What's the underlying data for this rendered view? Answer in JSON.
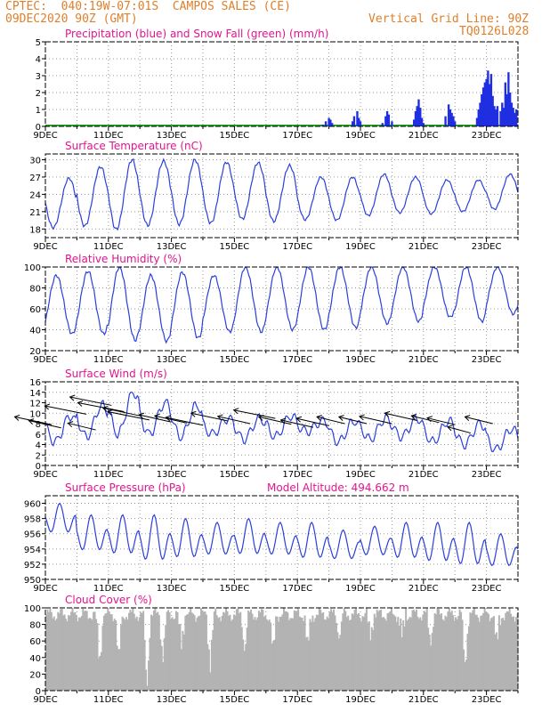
{
  "header": {
    "line1": "CPTEC:  040:19W-07:01S  CAMPOS SALES (CE)",
    "line2": "09DEC2020 90Z (GMT)",
    "grid_note": "Vertical Grid Line: 90Z",
    "code": "TQ0126L028"
  },
  "colors": {
    "header": "#e07f2a",
    "title": "#e0158f",
    "line": "#2b3fdb",
    "precip": "#1f2ee0",
    "snow": "#22aa22",
    "cloud": "#b3b3b3",
    "arrow": "#000000"
  },
  "x_ticks": [
    "9DEC",
    "11DEC",
    "13DEC",
    "15DEC",
    "17DEC",
    "19DEC",
    "21DEC",
    "23DEC"
  ],
  "chart_data": [
    {
      "type": "bar",
      "title": "Precipitation (blue) and Snow Fall (green) (mm/h)",
      "x": "days from 9DEC 00Z (0-15, hourly)",
      "ylim": [
        0,
        5
      ],
      "yticks": [
        0,
        1,
        2,
        3,
        4,
        5
      ],
      "series": [
        {
          "name": "Precipitation (blue)",
          "points": [
            [
              8.8,
              0.1
            ],
            [
              8.9,
              0.3
            ],
            [
              9.0,
              0.5
            ],
            [
              9.05,
              0.4
            ],
            [
              9.1,
              0.2
            ],
            [
              9.75,
              0.3
            ],
            [
              9.8,
              0.6
            ],
            [
              9.9,
              0.9
            ],
            [
              9.95,
              0.5
            ],
            [
              10.0,
              0.3
            ],
            [
              10.7,
              0.2
            ],
            [
              10.8,
              0.6
            ],
            [
              10.85,
              0.9
            ],
            [
              10.9,
              0.7
            ],
            [
              11.0,
              0.3
            ],
            [
              11.7,
              0.4
            ],
            [
              11.75,
              0.9
            ],
            [
              11.8,
              1.2
            ],
            [
              11.85,
              1.6
            ],
            [
              11.9,
              1.1
            ],
            [
              11.95,
              0.5
            ],
            [
              12.0,
              0.2
            ],
            [
              12.7,
              0.6
            ],
            [
              12.8,
              1.3
            ],
            [
              12.85,
              1.0
            ],
            [
              12.9,
              0.8
            ],
            [
              12.95,
              0.6
            ],
            [
              13.0,
              0.3
            ],
            [
              13.7,
              0.5
            ],
            [
              13.75,
              1.0
            ],
            [
              13.8,
              1.4
            ],
            [
              13.85,
              1.9
            ],
            [
              13.9,
              2.3
            ],
            [
              13.95,
              2.6
            ],
            [
              14.0,
              2.8
            ],
            [
              14.05,
              3.3
            ],
            [
              14.1,
              2.5
            ],
            [
              14.15,
              3.1
            ],
            [
              14.2,
              1.8
            ],
            [
              14.25,
              1.2
            ],
            [
              14.3,
              1.0
            ],
            [
              14.35,
              1.2
            ],
            [
              14.45,
              0.9
            ],
            [
              14.5,
              1.4
            ],
            [
              14.55,
              1.1
            ],
            [
              14.6,
              2.6
            ],
            [
              14.65,
              1.9
            ],
            [
              14.7,
              3.2
            ],
            [
              14.75,
              2.0
            ],
            [
              14.8,
              1.4
            ],
            [
              14.85,
              1.1
            ],
            [
              14.9,
              0.8
            ],
            [
              14.95,
              1.0
            ]
          ]
        },
        {
          "name": "Snow Fall (green)",
          "points": []
        }
      ]
    },
    {
      "type": "line",
      "title": "Surface Temperature (nC)",
      "ylim": [
        16.5,
        31
      ],
      "yticks": [
        18,
        21,
        24,
        27,
        30
      ],
      "daily_min": [
        18.2,
        18.5,
        17.9,
        18.6,
        18.8,
        19.0,
        19.7,
        19.3,
        19.6,
        19.5,
        20.3,
        20.8,
        20.6,
        21.0,
        21.4
      ],
      "daily_max": [
        26.8,
        28.8,
        30.0,
        29.8,
        30.0,
        29.6,
        29.5,
        29.0,
        27.0,
        27.0,
        27.5,
        27.0,
        26.5,
        26.5,
        27.5
      ]
    },
    {
      "type": "line",
      "title": "Relative Humidity (%)",
      "ylim": [
        20,
        100
      ],
      "yticks": [
        20,
        40,
        60,
        80,
        100
      ],
      "daily_min": [
        36,
        36,
        30,
        29,
        32,
        38,
        38,
        40,
        40,
        42,
        46,
        48,
        52,
        48,
        55
      ],
      "daily_max": [
        92,
        96,
        100,
        92,
        95,
        92,
        100,
        100,
        100,
        100,
        100,
        100,
        100,
        100,
        100
      ]
    },
    {
      "type": "line",
      "title": "Surface Wind (m/s)",
      "ylim": [
        0,
        16
      ],
      "yticks": [
        0,
        2,
        4,
        6,
        8,
        10,
        12,
        14,
        16
      ],
      "daily_min": [
        4.5,
        5.5,
        6.0,
        6.0,
        5.5,
        6.0,
        5.0,
        5.5,
        6.5,
        4.5,
        5.0,
        5.5,
        4.5,
        4.0,
        3.0
      ],
      "daily_max": [
        9.5,
        11.5,
        14.0,
        12.0,
        11.5,
        9.0,
        9.0,
        9.5,
        8.5,
        8.5,
        9.0,
        9.0,
        8.5,
        8.0,
        7.0
      ],
      "vectors": [
        [
          0.2,
          7.8,
          -8
        ],
        [
          0.5,
          7.2,
          -7
        ],
        [
          1.3,
          9.8,
          -9
        ],
        [
          1.6,
          6.8,
          -6
        ],
        [
          2.1,
          11.5,
          -9
        ],
        [
          2.5,
          10.3,
          -10
        ],
        [
          3.0,
          9.5,
          -8
        ],
        [
          3.3,
          8.7,
          -9
        ],
        [
          4.0,
          8.3,
          -7
        ],
        [
          4.5,
          8.1,
          -7
        ],
        [
          5.0,
          7.7,
          -8
        ],
        [
          5.8,
          8.5,
          -8
        ],
        [
          6.5,
          8.0,
          -7
        ],
        [
          7.3,
          9.0,
          -9
        ],
        [
          7.8,
          7.9,
          -7
        ],
        [
          8.5,
          7.3,
          -7
        ],
        [
          9.0,
          7.6,
          -7
        ],
        [
          9.5,
          8.0,
          -6
        ],
        [
          10.2,
          8.0,
          -6
        ],
        [
          11.0,
          8.0,
          -7
        ],
        [
          11.8,
          8.6,
          -7
        ],
        [
          12.5,
          8.2,
          -6
        ],
        [
          13.0,
          7.8,
          -6
        ],
        [
          13.5,
          6.2,
          -5
        ],
        [
          14.2,
          8.0,
          -6
        ]
      ]
    },
    {
      "type": "line",
      "title": "Surface Pressure (hPa)",
      "annotation": "Model Altitude: 494.662 m",
      "ylim": [
        950,
        961
      ],
      "yticks": [
        950,
        952,
        954,
        956,
        958,
        960
      ],
      "daily_high": [
        960.0,
        958.5,
        958.5,
        958.5,
        958.0,
        957.5,
        958.0,
        957.5,
        957.5,
        956.5,
        957.0,
        957.5,
        957.5,
        957.5,
        956.0
      ],
      "daily_low": [
        955.5,
        953.0,
        952.5,
        951.5,
        952.0,
        952.5,
        952.5,
        952.5,
        952.0,
        952.0,
        952.5,
        952.0,
        951.5,
        951.0,
        951.0
      ]
    },
    {
      "type": "area",
      "title": "Cloud Cover (%)",
      "ylim": [
        0,
        100
      ],
      "yticks": [
        0,
        20,
        40,
        60,
        80,
        100
      ],
      "typical": 92,
      "dips": [
        [
          1.7,
          30
        ],
        [
          2.3,
          40
        ],
        [
          3.2,
          0
        ],
        [
          3.7,
          35
        ],
        [
          4.3,
          55
        ],
        [
          5.2,
          25
        ],
        [
          6.3,
          45
        ],
        [
          7.2,
          50
        ],
        [
          8.3,
          55
        ],
        [
          9.3,
          60
        ],
        [
          10.3,
          65
        ],
        [
          11.3,
          70
        ],
        [
          12.2,
          55
        ],
        [
          13.3,
          25
        ],
        [
          14.3,
          60
        ]
      ]
    }
  ]
}
